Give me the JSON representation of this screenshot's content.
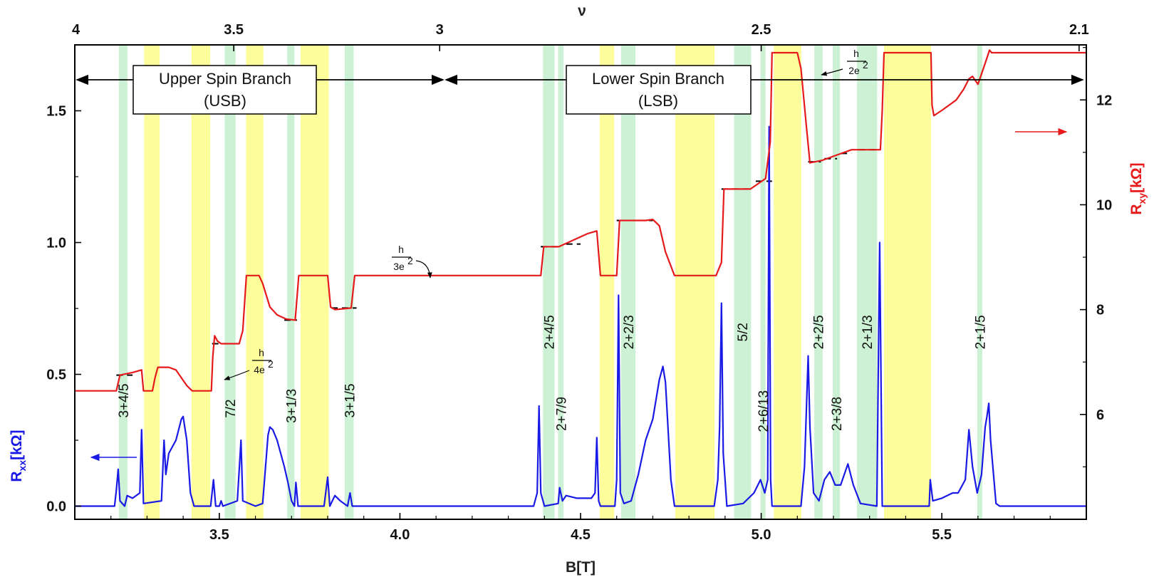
{
  "chart_data": {
    "type": "line",
    "x_axis": {
      "label": "B[T]",
      "range": [
        3.1,
        5.9
      ],
      "ticks": [
        {
          "value": 3.5,
          "label": "3.5"
        },
        {
          "value": 4.0,
          "label": "4.0"
        },
        {
          "value": 4.5,
          "label": "4.5"
        },
        {
          "value": 5.0,
          "label": "5.0"
        },
        {
          "value": 5.5,
          "label": "5.5"
        }
      ]
    },
    "top_axis": {
      "label": "ν",
      "ticks": [
        {
          "value": 3.1,
          "label": "4"
        },
        {
          "value": 3.54,
          "label": "3.5"
        },
        {
          "value": 4.11,
          "label": "3"
        },
        {
          "value": 5.0,
          "label": "2.5"
        },
        {
          "value": 5.88,
          "label": "2.1"
        }
      ]
    },
    "left_axis": {
      "label_main": "R",
      "label_sub": "xx",
      "label_unit": "[kΩ]",
      "range": [
        -0.05,
        1.75
      ],
      "ticks": [
        {
          "value": 0.0,
          "label": "0.0"
        },
        {
          "value": 0.5,
          "label": "0.5"
        },
        {
          "value": 1.0,
          "label": "1.0"
        },
        {
          "value": 1.5,
          "label": "1.5"
        }
      ],
      "color": "#1a1ae6"
    },
    "right_axis": {
      "label_main": "R",
      "label_sub": "xy",
      "label_unit": "[kΩ]",
      "range": [
        4.0,
        13.05
      ],
      "ticks": [
        {
          "value": 6,
          "label": "6"
        },
        {
          "value": 8,
          "label": "8"
        },
        {
          "value": 10,
          "label": "10"
        },
        {
          "value": 12,
          "label": "12"
        }
      ],
      "color": "#e61a1a"
    },
    "bands": [
      {
        "kind": "green",
        "x0": 3.222,
        "x1": 3.246
      },
      {
        "kind": "yellow",
        "x0": 3.292,
        "x1": 3.335
      },
      {
        "kind": "yellow",
        "x0": 3.423,
        "x1": 3.475
      },
      {
        "kind": "green",
        "x0": 3.515,
        "x1": 3.545
      },
      {
        "kind": "yellow",
        "x0": 3.574,
        "x1": 3.622
      },
      {
        "kind": "green",
        "x0": 3.688,
        "x1": 3.708
      },
      {
        "kind": "yellow",
        "x0": 3.725,
        "x1": 3.803
      },
      {
        "kind": "green",
        "x0": 3.847,
        "x1": 3.872
      },
      {
        "kind": "green",
        "x0": 4.396,
        "x1": 4.428
      },
      {
        "kind": "green",
        "x0": 4.438,
        "x1": 4.453
      },
      {
        "kind": "yellow",
        "x0": 4.553,
        "x1": 4.593
      },
      {
        "kind": "green",
        "x0": 4.612,
        "x1": 4.652
      },
      {
        "kind": "yellow",
        "x0": 4.762,
        "x1": 4.871
      },
      {
        "kind": "green",
        "x0": 4.925,
        "x1": 4.972
      },
      {
        "kind": "green",
        "x0": 4.998,
        "x1": 5.012
      },
      {
        "kind": "yellow",
        "x0": 5.035,
        "x1": 5.111
      },
      {
        "kind": "green",
        "x0": 5.147,
        "x1": 5.17
      },
      {
        "kind": "green",
        "x0": 5.198,
        "x1": 5.218
      },
      {
        "kind": "green",
        "x0": 5.265,
        "x1": 5.321
      },
      {
        "kind": "yellow",
        "x0": 5.34,
        "x1": 5.47
      },
      {
        "kind": "green",
        "x0": 5.598,
        "x1": 5.612
      }
    ],
    "band_labels": [
      {
        "text": "3+4/5",
        "x": 3.234,
        "y": 0.4
      },
      {
        "text": "7/2",
        "x": 3.53,
        "y": 0.37
      },
      {
        "text": "3+1/3",
        "x": 3.698,
        "y": 0.38
      },
      {
        "text": "3+1/5",
        "x": 3.86,
        "y": 0.4
      },
      {
        "text": "2+4/5",
        "x": 4.412,
        "y": 0.66
      },
      {
        "text": "2+7/9",
        "x": 4.446,
        "y": 0.35
      },
      {
        "text": "2+2/3",
        "x": 4.632,
        "y": 0.66
      },
      {
        "text": "5/2",
        "x": 4.948,
        "y": 0.66
      },
      {
        "text": "2+6/13",
        "x": 5.005,
        "y": 0.36
      },
      {
        "text": "2+2/5",
        "x": 5.158,
        "y": 0.66
      },
      {
        "text": "2+3/8",
        "x": 5.208,
        "y": 0.35
      },
      {
        "text": "2+1/3",
        "x": 5.293,
        "y": 0.66
      },
      {
        "text": "2+1/5",
        "x": 5.605,
        "y": 0.66
      }
    ],
    "branches": [
      {
        "name": "Upper Spin Branch",
        "abbr": "(USB)",
        "x0": 3.1,
        "x1": 4.11
      },
      {
        "name": "Lower Spin Branch",
        "abbr": "(LSB)",
        "x0": 4.11,
        "x1": 5.88
      }
    ],
    "annotations": [
      {
        "num": "h",
        "den": "4e",
        "exp": "2"
      },
      {
        "num": "h",
        "den": "3e",
        "exp": "2"
      },
      {
        "num": "h",
        "den": "2e",
        "exp": "2"
      }
    ],
    "series": [
      {
        "name": "Rxy",
        "axis": "right",
        "color": "#e61a1a",
        "points": [
          [
            3.1,
            6.45
          ],
          [
            3.215,
            6.45
          ],
          [
            3.225,
            6.75
          ],
          [
            3.26,
            6.8
          ],
          [
            3.285,
            6.85
          ],
          [
            3.29,
            6.45
          ],
          [
            3.315,
            6.45
          ],
          [
            3.322,
            6.7
          ],
          [
            3.33,
            6.9
          ],
          [
            3.36,
            6.9
          ],
          [
            3.38,
            6.85
          ],
          [
            3.41,
            6.55
          ],
          [
            3.425,
            6.45
          ],
          [
            3.478,
            6.45
          ],
          [
            3.482,
            7.1
          ],
          [
            3.487,
            7.5
          ],
          [
            3.495,
            7.4
          ],
          [
            3.505,
            7.35
          ],
          [
            3.555,
            7.35
          ],
          [
            3.565,
            7.6
          ],
          [
            3.575,
            8.65
          ],
          [
            3.61,
            8.65
          ],
          [
            3.62,
            8.5
          ],
          [
            3.64,
            8.05
          ],
          [
            3.66,
            7.9
          ],
          [
            3.685,
            7.82
          ],
          [
            3.71,
            7.8
          ],
          [
            3.72,
            8.65
          ],
          [
            3.8,
            8.65
          ],
          [
            3.808,
            8.05
          ],
          [
            3.82,
            8.0
          ],
          [
            3.865,
            8.03
          ],
          [
            3.875,
            8.65
          ],
          [
            4.39,
            8.65
          ],
          [
            4.398,
            9.2
          ],
          [
            4.44,
            9.2
          ],
          [
            4.52,
            9.45
          ],
          [
            4.545,
            9.5
          ],
          [
            4.555,
            8.65
          ],
          [
            4.6,
            8.65
          ],
          [
            4.608,
            9.7
          ],
          [
            4.68,
            9.7
          ],
          [
            4.7,
            9.72
          ],
          [
            4.718,
            9.6
          ],
          [
            4.735,
            9.1
          ],
          [
            4.76,
            8.65
          ],
          [
            4.875,
            8.65
          ],
          [
            4.89,
            8.9
          ],
          [
            4.897,
            10.3
          ],
          [
            4.97,
            10.3
          ],
          [
            5.012,
            10.5
          ],
          [
            5.025,
            11.2
          ],
          [
            5.03,
            12.9
          ],
          [
            5.1,
            12.9
          ],
          [
            5.11,
            12.6
          ],
          [
            5.125,
            11.5
          ],
          [
            5.135,
            10.8
          ],
          [
            5.17,
            10.85
          ],
          [
            5.21,
            10.95
          ],
          [
            5.25,
            11.05
          ],
          [
            5.33,
            11.05
          ],
          [
            5.335,
            11.8
          ],
          [
            5.34,
            12.9
          ],
          [
            5.47,
            12.9
          ],
          [
            5.473,
            11.9
          ],
          [
            5.478,
            11.7
          ],
          [
            5.5,
            11.8
          ],
          [
            5.52,
            11.9
          ],
          [
            5.54,
            12.0
          ],
          [
            5.56,
            12.2
          ],
          [
            5.575,
            12.4
          ],
          [
            5.585,
            12.45
          ],
          [
            5.6,
            12.3
          ],
          [
            5.615,
            12.6
          ],
          [
            5.625,
            12.8
          ],
          [
            5.632,
            12.95
          ],
          [
            5.638,
            12.9
          ],
          [
            5.9,
            12.9
          ]
        ]
      },
      {
        "name": "Rxx",
        "axis": "left",
        "color": "#1a1ae6",
        "points": [
          [
            3.1,
            0.0
          ],
          [
            3.21,
            0.0
          ],
          [
            3.215,
            0.06
          ],
          [
            3.22,
            0.14
          ],
          [
            3.225,
            0.02
          ],
          [
            3.238,
            0.0
          ],
          [
            3.245,
            0.04
          ],
          [
            3.26,
            0.03
          ],
          [
            3.28,
            0.05
          ],
          [
            3.285,
            0.29
          ],
          [
            3.29,
            0.01
          ],
          [
            3.34,
            0.02
          ],
          [
            3.347,
            0.25
          ],
          [
            3.352,
            0.12
          ],
          [
            3.36,
            0.2
          ],
          [
            3.38,
            0.25
          ],
          [
            3.395,
            0.33
          ],
          [
            3.4,
            0.34
          ],
          [
            3.41,
            0.25
          ],
          [
            3.42,
            0.05
          ],
          [
            3.43,
            0.0
          ],
          [
            3.476,
            0.0
          ],
          [
            3.484,
            0.1
          ],
          [
            3.49,
            0.0
          ],
          [
            3.5,
            0.0
          ],
          [
            3.505,
            0.02
          ],
          [
            3.51,
            0.0
          ],
          [
            3.55,
            0.02
          ],
          [
            3.56,
            0.25
          ],
          [
            3.565,
            0.02
          ],
          [
            3.6,
            0.0
          ],
          [
            3.62,
            0.01
          ],
          [
            3.635,
            0.27
          ],
          [
            3.64,
            0.3
          ],
          [
            3.648,
            0.29
          ],
          [
            3.66,
            0.25
          ],
          [
            3.68,
            0.15
          ],
          [
            3.69,
            0.09
          ],
          [
            3.7,
            0.02
          ],
          [
            3.708,
            0.0
          ],
          [
            3.712,
            0.09
          ],
          [
            3.718,
            0.0
          ],
          [
            3.79,
            0.0
          ],
          [
            3.8,
            0.11
          ],
          [
            3.806,
            0.0
          ],
          [
            3.82,
            0.04
          ],
          [
            3.835,
            0.02
          ],
          [
            3.855,
            0.0
          ],
          [
            3.862,
            0.05
          ],
          [
            3.868,
            0.0
          ],
          [
            4.37,
            0.0
          ],
          [
            4.38,
            0.05
          ],
          [
            4.385,
            0.38
          ],
          [
            4.39,
            0.05
          ],
          [
            4.4,
            0.0
          ],
          [
            4.438,
            0.01
          ],
          [
            4.442,
            0.07
          ],
          [
            4.45,
            0.02
          ],
          [
            4.46,
            0.04
          ],
          [
            4.49,
            0.03
          ],
          [
            4.53,
            0.03
          ],
          [
            4.54,
            0.05
          ],
          [
            4.545,
            0.26
          ],
          [
            4.55,
            0.02
          ],
          [
            4.555,
            0.0
          ],
          [
            4.595,
            0.0
          ],
          [
            4.6,
            0.1
          ],
          [
            4.605,
            0.8
          ],
          [
            4.61,
            0.05
          ],
          [
            4.62,
            0.01
          ],
          [
            4.64,
            0.02
          ],
          [
            4.66,
            0.12
          ],
          [
            4.68,
            0.25
          ],
          [
            4.7,
            0.33
          ],
          [
            4.718,
            0.48
          ],
          [
            4.728,
            0.53
          ],
          [
            4.735,
            0.47
          ],
          [
            4.75,
            0.1
          ],
          [
            4.76,
            0.0
          ],
          [
            4.87,
            0.0
          ],
          [
            4.88,
            0.1
          ],
          [
            4.885,
            0.3
          ],
          [
            4.89,
            0.77
          ],
          [
            4.895,
            0.2
          ],
          [
            4.905,
            0.0
          ],
          [
            4.95,
            0.01
          ],
          [
            4.98,
            0.05
          ],
          [
            4.998,
            0.1
          ],
          [
            5.01,
            0.05
          ],
          [
            5.018,
            0.1
          ],
          [
            5.022,
            1.44
          ],
          [
            5.026,
            0.1
          ],
          [
            5.03,
            0.0
          ],
          [
            5.11,
            0.0
          ],
          [
            5.12,
            0.15
          ],
          [
            5.13,
            0.57
          ],
          [
            5.135,
            0.3
          ],
          [
            5.145,
            0.05
          ],
          [
            5.16,
            0.02
          ],
          [
            5.175,
            0.1
          ],
          [
            5.19,
            0.13
          ],
          [
            5.205,
            0.08
          ],
          [
            5.22,
            0.08
          ],
          [
            5.24,
            0.16
          ],
          [
            5.255,
            0.08
          ],
          [
            5.275,
            0.01
          ],
          [
            5.32,
            0.0
          ],
          [
            5.328,
            1.0
          ],
          [
            5.335,
            0.0
          ],
          [
            5.465,
            0.0
          ],
          [
            5.468,
            0.1
          ],
          [
            5.475,
            0.02
          ],
          [
            5.5,
            0.03
          ],
          [
            5.53,
            0.05
          ],
          [
            5.545,
            0.05
          ],
          [
            5.565,
            0.1
          ],
          [
            5.575,
            0.29
          ],
          [
            5.585,
            0.15
          ],
          [
            5.598,
            0.05
          ],
          [
            5.61,
            0.12
          ],
          [
            5.62,
            0.3
          ],
          [
            5.625,
            0.34
          ],
          [
            5.63,
            0.39
          ],
          [
            5.635,
            0.25
          ],
          [
            5.65,
            0.01
          ],
          [
            5.66,
            0.0
          ],
          [
            5.9,
            0.0
          ]
        ]
      }
    ]
  }
}
